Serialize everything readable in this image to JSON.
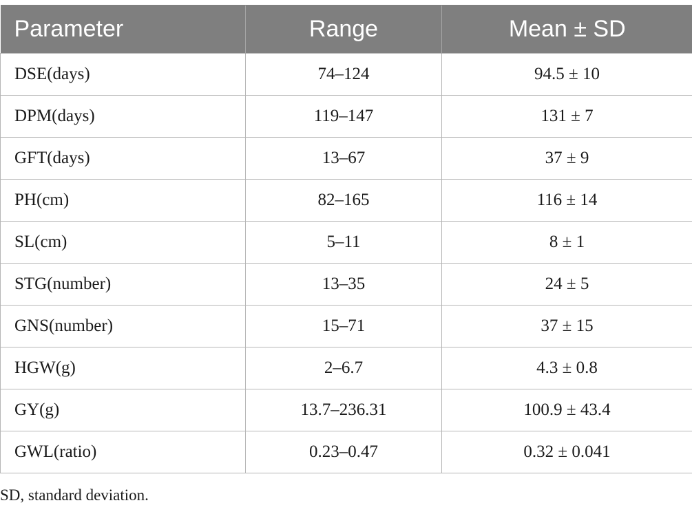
{
  "table": {
    "headers": [
      "Parameter",
      "Range",
      "Mean ± SD"
    ],
    "rows": [
      {
        "parameter": "DSE(days)",
        "range": "74–124",
        "mean_sd": "94.5 ± 10"
      },
      {
        "parameter": "DPM(days)",
        "range": "119–147",
        "mean_sd": "131 ± 7"
      },
      {
        "parameter": "GFT(days)",
        "range": "13–67",
        "mean_sd": "37 ± 9"
      },
      {
        "parameter": "PH(cm)",
        "range": "82–165",
        "mean_sd": "116 ± 14"
      },
      {
        "parameter": "SL(cm)",
        "range": "5–11",
        "mean_sd": "8 ± 1"
      },
      {
        "parameter": "STG(number)",
        "range": "13–35",
        "mean_sd": "24 ± 5"
      },
      {
        "parameter": "GNS(number)",
        "range": "15–71",
        "mean_sd": "37 ± 15"
      },
      {
        "parameter": "HGW(g)",
        "range": "2–6.7",
        "mean_sd": "4.3 ± 0.8"
      },
      {
        "parameter": "GY(g)",
        "range": "13.7–236.31",
        "mean_sd": "100.9 ± 43.4"
      },
      {
        "parameter": "GWL(ratio)",
        "range": "0.23–0.47",
        "mean_sd": "0.32 ± 0.041"
      }
    ]
  },
  "footnote": "SD, standard deviation.",
  "colors": {
    "header_bg": "#7f7f7f",
    "header_text": "#ffffff",
    "grid": "#b5b5b5"
  }
}
